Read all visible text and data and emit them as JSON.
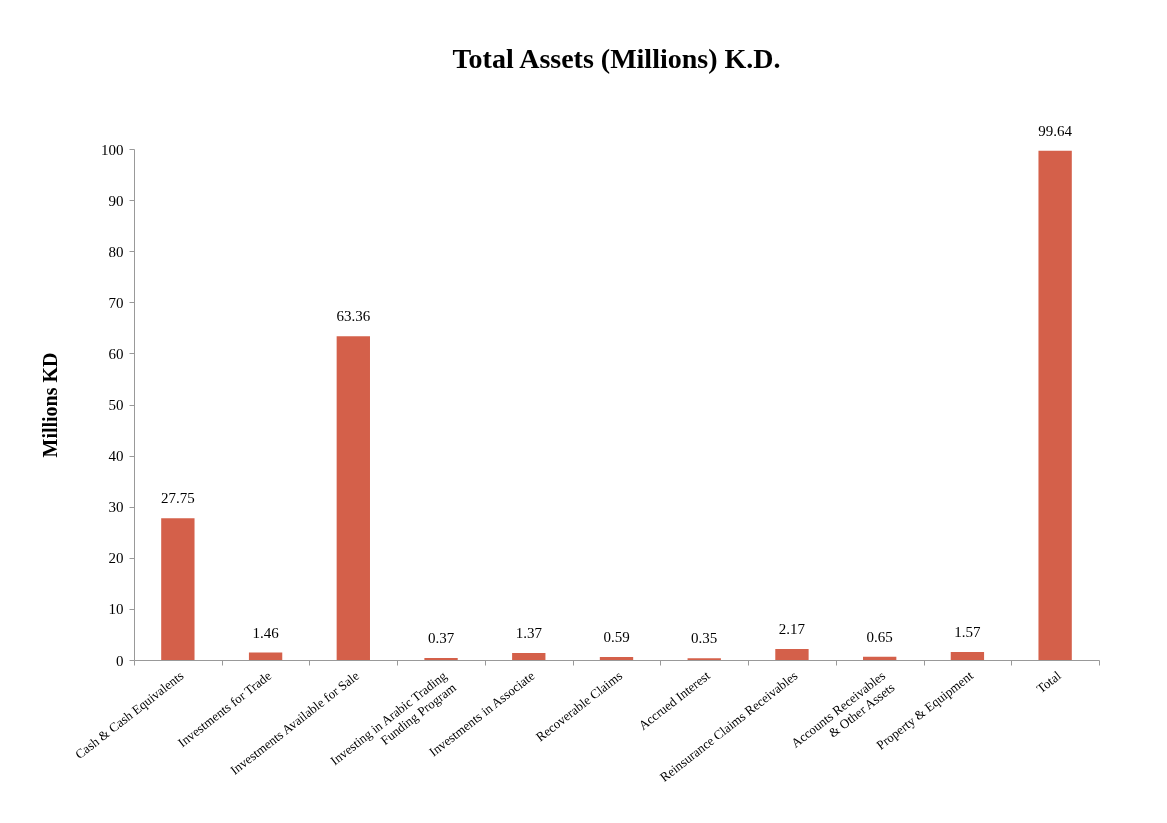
{
  "chart_data": {
    "type": "bar",
    "title": "Total Assets (Millions) K.D.",
    "ylabel": "Millions KD",
    "categories": [
      "Cash & Cash Equivalents",
      "Investments for Trade",
      "Investments Available for Sale",
      "Investing in Arabic Trading\nFunding Program",
      "Investments in Associate",
      "Recoverable Claims",
      "Accrued Interest",
      "Reinsurance Claims Receivables",
      "Accounts Receivables\n& Other Assets",
      "Property & Equipment",
      "Total"
    ],
    "values": [
      27.75,
      1.46,
      63.36,
      0.37,
      1.37,
      0.59,
      0.35,
      2.17,
      0.65,
      1.57,
      99.64
    ],
    "color": "#d4604a",
    "ylim": [
      0,
      100
    ],
    "yticks": [
      0,
      10,
      20,
      30,
      40,
      50,
      60,
      70,
      80,
      90,
      100
    ],
    "data_labels": true,
    "grid": false
  }
}
